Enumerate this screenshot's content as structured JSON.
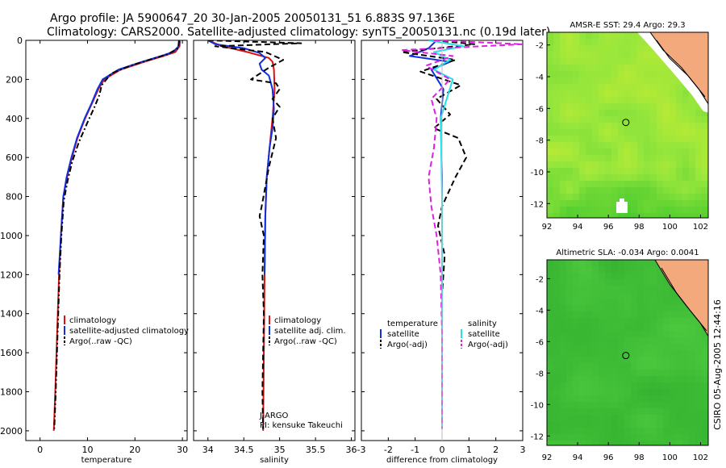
{
  "header": {
    "line1": "Argo profile: JA 5900647_20 30-Jan-2005 20050131_51 6.883S 97.136E",
    "line2": "Climatology: CARS2000. Satellite-adjusted climatology: synTS_20050131.nc (0.19d later)"
  },
  "colors": {
    "red": "#e01010",
    "blue": "#1030e0",
    "black": "#000000",
    "cyan": "#20e0e8",
    "magenta": "#e020e0"
  },
  "side_text": "CSIRO 05-Aug-2005 12:44:16",
  "chart_data": [
    {
      "type": "line",
      "id": "temperature",
      "xlabel": "temperature",
      "xlim": [
        -3,
        31
      ],
      "ylim": [
        2050,
        0
      ],
      "xticks": [
        0,
        10,
        20,
        30
      ],
      "yticks": [
        0,
        200,
        400,
        600,
        800,
        1000,
        1200,
        1400,
        1600,
        1800,
        2000
      ],
      "legend": {
        "position": "lower-center",
        "entries": [
          "climatology",
          "satellite-adjusted climatology",
          "Argo(..raw -QC)"
        ]
      },
      "series": [
        {
          "name": "climatology",
          "color": "red",
          "style": "solid",
          "x": [
            29.5,
            29.4,
            28.5,
            26,
            22,
            17,
            13.5,
            12.3,
            11,
            9.5,
            7.9,
            6.7,
            5.7,
            4.9,
            4.4,
            4.0,
            3.6,
            3.2,
            2.9
          ],
          "y": [
            0,
            30,
            60,
            80,
            110,
            150,
            200,
            250,
            320,
            400,
            500,
            600,
            700,
            800,
            1000,
            1200,
            1500,
            1800,
            2000
          ]
        },
        {
          "name": "satellite-adjusted climatology",
          "color": "blue",
          "style": "solid",
          "x": [
            29.3,
            29.2,
            28,
            25.5,
            21.5,
            16.5,
            13.2,
            12.1,
            10.9,
            9.4,
            7.8,
            6.6,
            5.6,
            4.9,
            4.4,
            3.9
          ],
          "y": [
            0,
            30,
            60,
            80,
            110,
            150,
            200,
            250,
            320,
            400,
            500,
            600,
            700,
            800,
            1000,
            1200
          ]
        },
        {
          "name": "Argo(..raw -QC)",
          "color": "black",
          "style": "dashdot",
          "x": [
            29.3,
            29.1,
            27,
            23,
            19,
            15,
            13,
            12.5,
            11.5,
            10,
            8.2,
            6.8,
            5.8,
            5.0,
            4.5,
            4.1,
            3.7,
            3.3,
            3.0
          ],
          "y": [
            0,
            40,
            70,
            100,
            130,
            170,
            230,
            280,
            340,
            420,
            520,
            620,
            720,
            820,
            1000,
            1200,
            1500,
            1800,
            1990
          ]
        }
      ]
    },
    {
      "type": "line",
      "id": "salinity",
      "xlabel": "salinity",
      "xlim": [
        33.8,
        36.05
      ],
      "ylim": [
        2050,
        0
      ],
      "xticks": [
        34,
        34.5,
        35,
        35.5,
        36
      ],
      "legend": {
        "position": "lower-center",
        "entries": [
          "climatology",
          "satellite adj. clim.",
          "Argo(..raw -QC)"
        ]
      },
      "annotation": [
        "J-ARGO",
        "PI: kensuke Takeuchi"
      ],
      "series": [
        {
          "name": "climatology",
          "color": "red",
          "style": "solid",
          "x": [
            34.0,
            34.2,
            34.55,
            34.85,
            34.9,
            34.92,
            34.93,
            34.9,
            34.86,
            34.82,
            34.8,
            34.79,
            34.78,
            34.77
          ],
          "y": [
            0,
            30,
            60,
            90,
            110,
            150,
            250,
            400,
            550,
            700,
            900,
            1200,
            1600,
            2000
          ]
        },
        {
          "name": "satellite adj. clim.",
          "color": "blue",
          "style": "solid",
          "x": [
            34.0,
            34.1,
            34.5,
            34.72,
            34.8,
            34.72,
            34.75,
            34.85,
            34.9,
            34.92,
            34.9,
            34.86,
            34.82,
            34.8,
            34.79
          ],
          "y": [
            0,
            20,
            40,
            65,
            90,
            120,
            150,
            180,
            250,
            350,
            450,
            550,
            700,
            900,
            1200
          ]
        },
        {
          "name": "Argo(..raw -QC)",
          "color": "black",
          "style": "dash",
          "x": [
            34.0,
            35.3,
            34.1,
            34.8,
            35.05,
            34.85,
            34.6,
            34.95,
            35.0,
            34.9,
            35.0,
            34.9,
            34.95,
            34.85,
            34.8,
            34.75,
            34.72,
            34.78,
            34.76,
            34.78,
            34.77,
            34.76,
            34.77
          ],
          "y": [
            0,
            15,
            30,
            60,
            100,
            140,
            200,
            220,
            250,
            300,
            340,
            400,
            500,
            650,
            750,
            850,
            900,
            1000,
            1200,
            1400,
            1600,
            1800,
            1990
          ]
        }
      ]
    },
    {
      "type": "line",
      "id": "difference",
      "xlabel": "difference from climatology",
      "xlim": [
        -3,
        3
      ],
      "ylim": [
        2050,
        0
      ],
      "xticks": [
        -3,
        -2,
        -1,
        0,
        1,
        2,
        3
      ],
      "legend": {
        "position": "lower-center",
        "groups": [
          {
            "title": "temperature",
            "entries": [
              "satellite",
              "Argo(-adj)"
            ]
          },
          {
            "title": "salinity",
            "entries": [
              "satellite",
              "Argo(-adj)"
            ]
          }
        ]
      },
      "series": [
        {
          "name": "satellite",
          "group": "temperature",
          "color": "blue",
          "style": "solid",
          "x": [
            -0.2,
            -0.5,
            -1.2,
            0.3,
            -0.4,
            0.05,
            -0.05,
            0.0,
            0.0
          ],
          "y": [
            0,
            40,
            80,
            110,
            150,
            250,
            400,
            700,
            1200
          ]
        },
        {
          "name": "Argo(-adj)",
          "group": "temperature",
          "color": "black",
          "style": "dash",
          "x": [
            -0.3,
            1.2,
            -1.5,
            0.5,
            -0.8,
            0.7,
            -0.2,
            0.3,
            -0.3,
            0.6,
            0.9,
            0.5,
            0.0,
            -0.15,
            0.1,
            0.0,
            0.0,
            0.0
          ],
          "y": [
            0,
            20,
            60,
            100,
            160,
            230,
            300,
            380,
            450,
            500,
            600,
            700,
            850,
            950,
            1100,
            1300,
            1600,
            1990
          ]
        },
        {
          "name": "satellite",
          "group": "salinity",
          "color": "cyan",
          "style": "solid",
          "x": [
            -0.5,
            0.8,
            -0.3,
            0.3,
            -0.3,
            0.4,
            -0.05,
            0.0,
            0.0
          ],
          "y": [
            0,
            30,
            60,
            100,
            150,
            200,
            400,
            800,
            1990
          ]
        },
        {
          "name": "Argo(-adj)",
          "group": "salinity",
          "color": "magenta",
          "style": "dash",
          "x": [
            -0.3,
            3.0,
            -1.5,
            0.4,
            -0.6,
            0.3,
            -0.4,
            -0.2,
            -0.3,
            -0.5,
            -0.4,
            -0.2,
            -0.05,
            0.0,
            0.0
          ],
          "y": [
            0,
            20,
            50,
            80,
            130,
            200,
            300,
            400,
            550,
            700,
            850,
            1000,
            1200,
            1500,
            1990
          ]
        }
      ]
    },
    {
      "type": "heatmap",
      "id": "sst_map",
      "title": "AMSR-E SST: 29.4 Argo: 29.3",
      "xlim": [
        92,
        102.5
      ],
      "ylim": [
        -12.9,
        -1.2
      ],
      "xticks": [
        92,
        94,
        96,
        98,
        100,
        102
      ],
      "yticks": [
        -2,
        -4,
        -6,
        -8,
        -10,
        -12
      ],
      "marker": {
        "lon": 97.136,
        "lat": -6.883
      }
    },
    {
      "type": "heatmap",
      "id": "sla_map",
      "title": "Altimetric SLA: -0.034 Argo: 0.0041",
      "xlim": [
        92,
        102.5
      ],
      "ylim": [
        -12.6,
        -0.8
      ],
      "xticks": [
        92,
        94,
        96,
        98,
        100,
        102
      ],
      "yticks": [
        -2,
        -4,
        -6,
        -8,
        -10,
        -12
      ],
      "marker": {
        "lon": 97.136,
        "lat": -6.883
      }
    }
  ]
}
